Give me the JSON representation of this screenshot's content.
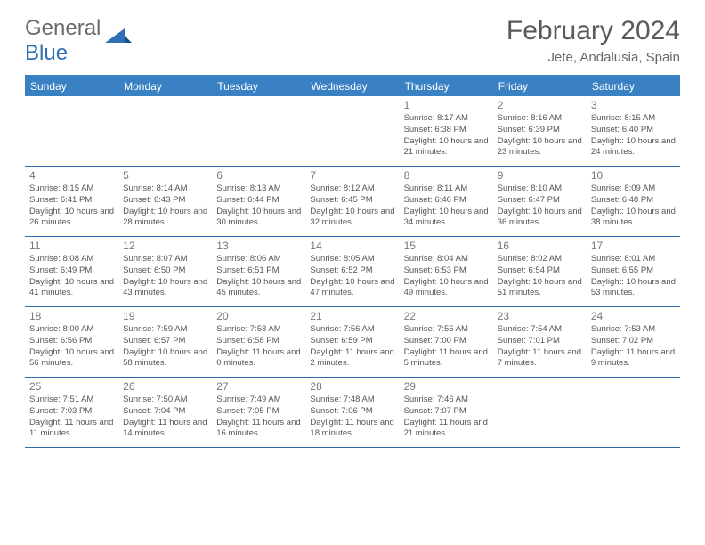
{
  "brand": {
    "name_part1": "General",
    "name_part2": "Blue"
  },
  "title": "February 2024",
  "location": "Jete, Andalusia, Spain",
  "colors": {
    "header_bar": "#3a81c4",
    "border": "#2f6aa8",
    "logo_gray": "#6a6a6a",
    "logo_blue": "#2e6fb5",
    "title_gray": "#5a5a5a"
  },
  "weekdays": [
    "Sunday",
    "Monday",
    "Tuesday",
    "Wednesday",
    "Thursday",
    "Friday",
    "Saturday"
  ],
  "grid": [
    [
      null,
      null,
      null,
      null,
      {
        "n": "1",
        "sr": "8:17 AM",
        "ss": "6:38 PM",
        "dl": "10 hours and 21 minutes."
      },
      {
        "n": "2",
        "sr": "8:16 AM",
        "ss": "6:39 PM",
        "dl": "10 hours and 23 minutes."
      },
      {
        "n": "3",
        "sr": "8:15 AM",
        "ss": "6:40 PM",
        "dl": "10 hours and 24 minutes."
      }
    ],
    [
      {
        "n": "4",
        "sr": "8:15 AM",
        "ss": "6:41 PM",
        "dl": "10 hours and 26 minutes."
      },
      {
        "n": "5",
        "sr": "8:14 AM",
        "ss": "6:43 PM",
        "dl": "10 hours and 28 minutes."
      },
      {
        "n": "6",
        "sr": "8:13 AM",
        "ss": "6:44 PM",
        "dl": "10 hours and 30 minutes."
      },
      {
        "n": "7",
        "sr": "8:12 AM",
        "ss": "6:45 PM",
        "dl": "10 hours and 32 minutes."
      },
      {
        "n": "8",
        "sr": "8:11 AM",
        "ss": "6:46 PM",
        "dl": "10 hours and 34 minutes."
      },
      {
        "n": "9",
        "sr": "8:10 AM",
        "ss": "6:47 PM",
        "dl": "10 hours and 36 minutes."
      },
      {
        "n": "10",
        "sr": "8:09 AM",
        "ss": "6:48 PM",
        "dl": "10 hours and 38 minutes."
      }
    ],
    [
      {
        "n": "11",
        "sr": "8:08 AM",
        "ss": "6:49 PM",
        "dl": "10 hours and 41 minutes."
      },
      {
        "n": "12",
        "sr": "8:07 AM",
        "ss": "6:50 PM",
        "dl": "10 hours and 43 minutes."
      },
      {
        "n": "13",
        "sr": "8:06 AM",
        "ss": "6:51 PM",
        "dl": "10 hours and 45 minutes."
      },
      {
        "n": "14",
        "sr": "8:05 AM",
        "ss": "6:52 PM",
        "dl": "10 hours and 47 minutes."
      },
      {
        "n": "15",
        "sr": "8:04 AM",
        "ss": "6:53 PM",
        "dl": "10 hours and 49 minutes."
      },
      {
        "n": "16",
        "sr": "8:02 AM",
        "ss": "6:54 PM",
        "dl": "10 hours and 51 minutes."
      },
      {
        "n": "17",
        "sr": "8:01 AM",
        "ss": "6:55 PM",
        "dl": "10 hours and 53 minutes."
      }
    ],
    [
      {
        "n": "18",
        "sr": "8:00 AM",
        "ss": "6:56 PM",
        "dl": "10 hours and 56 minutes."
      },
      {
        "n": "19",
        "sr": "7:59 AM",
        "ss": "6:57 PM",
        "dl": "10 hours and 58 minutes."
      },
      {
        "n": "20",
        "sr": "7:58 AM",
        "ss": "6:58 PM",
        "dl": "11 hours and 0 minutes."
      },
      {
        "n": "21",
        "sr": "7:56 AM",
        "ss": "6:59 PM",
        "dl": "11 hours and 2 minutes."
      },
      {
        "n": "22",
        "sr": "7:55 AM",
        "ss": "7:00 PM",
        "dl": "11 hours and 5 minutes."
      },
      {
        "n": "23",
        "sr": "7:54 AM",
        "ss": "7:01 PM",
        "dl": "11 hours and 7 minutes."
      },
      {
        "n": "24",
        "sr": "7:53 AM",
        "ss": "7:02 PM",
        "dl": "11 hours and 9 minutes."
      }
    ],
    [
      {
        "n": "25",
        "sr": "7:51 AM",
        "ss": "7:03 PM",
        "dl": "11 hours and 11 minutes."
      },
      {
        "n": "26",
        "sr": "7:50 AM",
        "ss": "7:04 PM",
        "dl": "11 hours and 14 minutes."
      },
      {
        "n": "27",
        "sr": "7:49 AM",
        "ss": "7:05 PM",
        "dl": "11 hours and 16 minutes."
      },
      {
        "n": "28",
        "sr": "7:48 AM",
        "ss": "7:06 PM",
        "dl": "11 hours and 18 minutes."
      },
      {
        "n": "29",
        "sr": "7:46 AM",
        "ss": "7:07 PM",
        "dl": "11 hours and 21 minutes."
      },
      null,
      null
    ]
  ],
  "labels": {
    "sunrise": "Sunrise:",
    "sunset": "Sunset:",
    "daylight": "Daylight:"
  }
}
